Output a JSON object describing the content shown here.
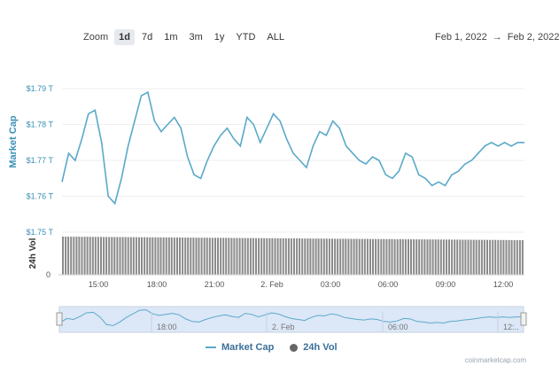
{
  "toolbar": {
    "zoom_label": "Zoom",
    "buttons": [
      "1d",
      "7d",
      "1m",
      "3m",
      "1y",
      "YTD",
      "ALL"
    ],
    "active": "1d"
  },
  "date_range": {
    "from": "Feb 1, 2022",
    "arrow": "→",
    "to": "Feb 2, 2022"
  },
  "legend": {
    "market_cap": "Market Cap",
    "vol": "24h Vol"
  },
  "watermark": "coinmarketcap.com",
  "colors": {
    "line": "#5aa9c9",
    "axis_label": "#3a8fb7",
    "bar": "#888888",
    "navigator_fill": "#dce7f7"
  },
  "chart_data": {
    "type": "line",
    "ylabel": "Market Cap",
    "y2label": "24h Vol",
    "y_ticks": [
      "$1.75 T",
      "$1.76 T",
      "$1.77 T",
      "$1.78 T",
      "$1.79 T"
    ],
    "ylim": [
      1.75,
      1.79
    ],
    "vol_axis_tick": "0",
    "x_ticks": [
      "15:00",
      "18:00",
      "21:00",
      "2. Feb",
      "03:00",
      "06:00",
      "09:00",
      "12:00"
    ],
    "navigator_ticks": [
      "18:00",
      "2. Feb",
      "06:00",
      "12:.."
    ],
    "x": [
      "13:00",
      "13:30",
      "14:00",
      "14:30",
      "15:00",
      "15:20",
      "15:40",
      "16:00",
      "16:20",
      "16:40",
      "17:00",
      "17:20",
      "17:40",
      "18:00",
      "18:20",
      "18:40",
      "19:00",
      "19:20",
      "19:40",
      "20:00",
      "20:20",
      "20:40",
      "21:00",
      "21:20",
      "21:40",
      "22:00",
      "22:20",
      "22:40",
      "23:00",
      "23:20",
      "23:40",
      "00:00",
      "00:20",
      "00:40",
      "01:00",
      "01:20",
      "01:40",
      "02:00",
      "02:20",
      "02:40",
      "03:00",
      "03:20",
      "03:40",
      "04:00",
      "04:20",
      "04:40",
      "05:00",
      "05:20",
      "05:40",
      "06:00",
      "06:20",
      "06:40",
      "07:00",
      "07:20",
      "07:40",
      "08:00",
      "08:20",
      "08:40",
      "09:00",
      "09:20",
      "09:40",
      "10:00",
      "10:20",
      "10:40",
      "11:00",
      "11:20",
      "11:40",
      "12:00",
      "12:20",
      "12:40",
      "13:00"
    ],
    "series": [
      {
        "name": "Market Cap",
        "unit": "T USD",
        "values": [
          1.764,
          1.772,
          1.77,
          1.776,
          1.783,
          1.784,
          1.775,
          1.76,
          1.758,
          1.765,
          1.774,
          1.781,
          1.788,
          1.789,
          1.781,
          1.778,
          1.78,
          1.782,
          1.779,
          1.771,
          1.766,
          1.765,
          1.77,
          1.774,
          1.777,
          1.779,
          1.776,
          1.774,
          1.782,
          1.78,
          1.775,
          1.779,
          1.783,
          1.781,
          1.776,
          1.772,
          1.77,
          1.768,
          1.774,
          1.778,
          1.777,
          1.781,
          1.779,
          1.774,
          1.772,
          1.77,
          1.769,
          1.771,
          1.77,
          1.766,
          1.765,
          1.767,
          1.772,
          1.771,
          1.766,
          1.765,
          1.763,
          1.764,
          1.763,
          1.766,
          1.767,
          1.769,
          1.77,
          1.772,
          1.774,
          1.775,
          1.774,
          1.775,
          1.774,
          1.775,
          1.775
        ]
      }
    ],
    "grid": true
  }
}
